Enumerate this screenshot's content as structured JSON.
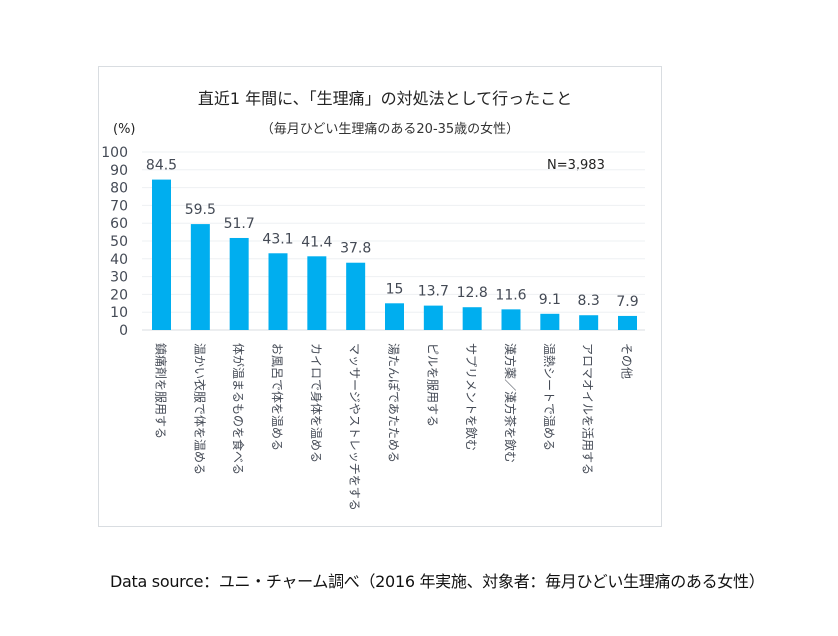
{
  "chart_data": {
    "type": "bar",
    "title": "直近1 年間に、「生理痛」の対処法として行ったこと",
    "subtitle": "（毎月ひどい生理痛のある20-35歳の女性）",
    "ylabel": "(%)",
    "xlabel": "",
    "ylim": [
      0,
      100
    ],
    "yticks": [
      0,
      10,
      20,
      30,
      40,
      50,
      60,
      70,
      80,
      90,
      100
    ],
    "grid": true,
    "annotation": "N=3,983",
    "bar_color": "#00aeef",
    "categories": [
      "鎮痛剤を服用する",
      "温かい衣服で体を温める",
      "体が温まるものを食べる",
      "お風呂で体を温める",
      "カイロで身体を温める",
      "マッサージやストレッチをする",
      "湯たんぽであたためる",
      "ピルを服用する",
      "サプリメントを飲む",
      "漢方薬／漢方茶を飲む",
      "温熱シートで温める",
      "アロマオイルを活用する",
      "その他"
    ],
    "values": [
      84.5,
      59.5,
      51.7,
      43.1,
      41.4,
      37.8,
      15,
      13.7,
      12.8,
      11.6,
      9.1,
      8.3,
      7.9
    ],
    "value_labels": [
      "84.5",
      "59.5",
      "51.7",
      "43.1",
      "41.4",
      "37.8",
      "15",
      "13.7",
      "12.8",
      "11.6",
      "9.1",
      "8.3",
      "7.9"
    ]
  },
  "source": "Data source：ユニ・チャーム調べ（2016 年実施、対象者：毎月ひどい生理痛のある女性）"
}
